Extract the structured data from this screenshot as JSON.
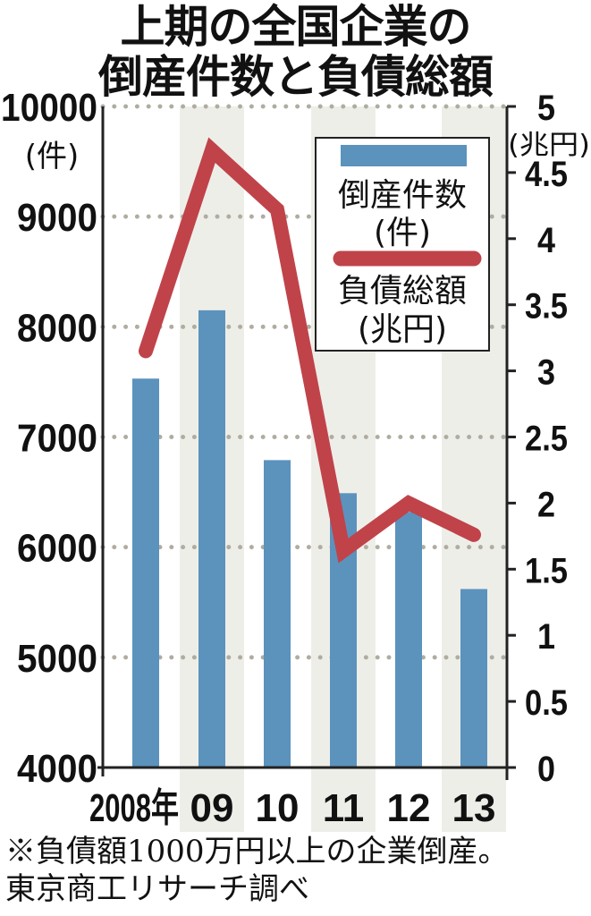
{
  "title": {
    "line1": "上期の全国企業の",
    "line2": "倒産件数と負債総額"
  },
  "footnote": {
    "line1": "※負債額1000万円以上の企業倒産。",
    "line2": "東京商工リサーチ調べ"
  },
  "colors": {
    "bar": "#5b93bd",
    "line": "#c0434a",
    "shade": "#eeeee9",
    "grid": "#b0aca0"
  },
  "chart_data": {
    "type": "bar+line",
    "title": "上期の全国企業の倒産件数と負債総額",
    "categories": [
      "2008年",
      "09",
      "10",
      "11",
      "12",
      "13"
    ],
    "series": [
      {
        "name": "倒産件数（件）",
        "type": "bar",
        "axis": "left",
        "values": [
          7530,
          8150,
          6790,
          6490,
          6320,
          5620
        ]
      },
      {
        "name": "負債総額（兆円）",
        "type": "line",
        "axis": "right",
        "values": [
          3.15,
          4.67,
          4.22,
          1.64,
          2.0,
          1.76
        ]
      }
    ],
    "left_axis": {
      "unit": "(件)",
      "ylim": [
        4000,
        10000
      ],
      "ticks": [
        "10000",
        "9000",
        "8000",
        "7000",
        "6000",
        "5000",
        "4000"
      ]
    },
    "right_axis": {
      "unit": "(兆円)",
      "ylim": [
        0,
        5
      ],
      "ticks": [
        "5",
        "4.5",
        "4",
        "3.5",
        "3",
        "2.5",
        "2",
        "1.5",
        "1",
        "0.5",
        "0"
      ]
    },
    "legend": {
      "position": "upper-right",
      "entries": [
        "倒産件数",
        "(件)",
        "負債総額",
        "(兆円)"
      ]
    },
    "grid": "dotted horizontal at left-axis ticks"
  }
}
